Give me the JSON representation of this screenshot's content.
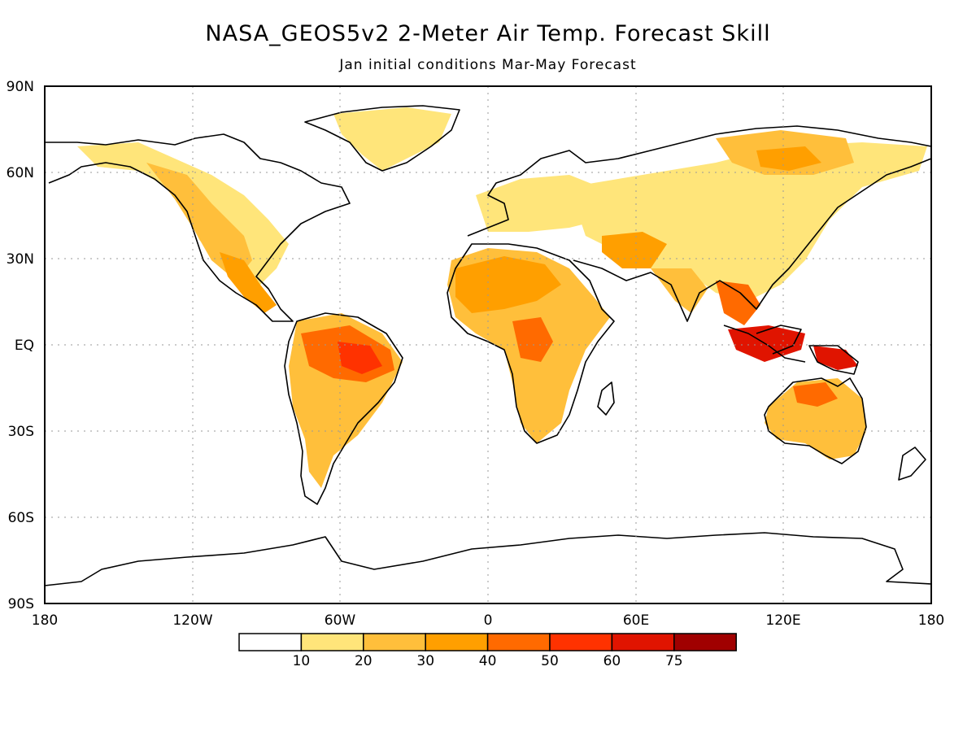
{
  "title": "NASA_GEOS5v2 2-Meter Air Temp. Forecast Skill",
  "subtitle": "Jan initial conditions  Mar-May Forecast",
  "axes": {
    "latitude_labels": [
      "90N",
      "60N",
      "30N",
      "EQ",
      "30S",
      "60S",
      "90S"
    ],
    "longitude_labels": [
      "180",
      "120W",
      "60W",
      "0",
      "60E",
      "120E",
      "180"
    ],
    "grid": "dotted"
  },
  "colorbar": {
    "labels": [
      "10",
      "20",
      "30",
      "40",
      "50",
      "60",
      "75"
    ],
    "colors": [
      "#ffffff",
      "#ffe57a",
      "#ffbf3b",
      "#ff9f00",
      "#ff6a00",
      "#ff3200",
      "#e01400",
      "#a00000"
    ]
  }
}
